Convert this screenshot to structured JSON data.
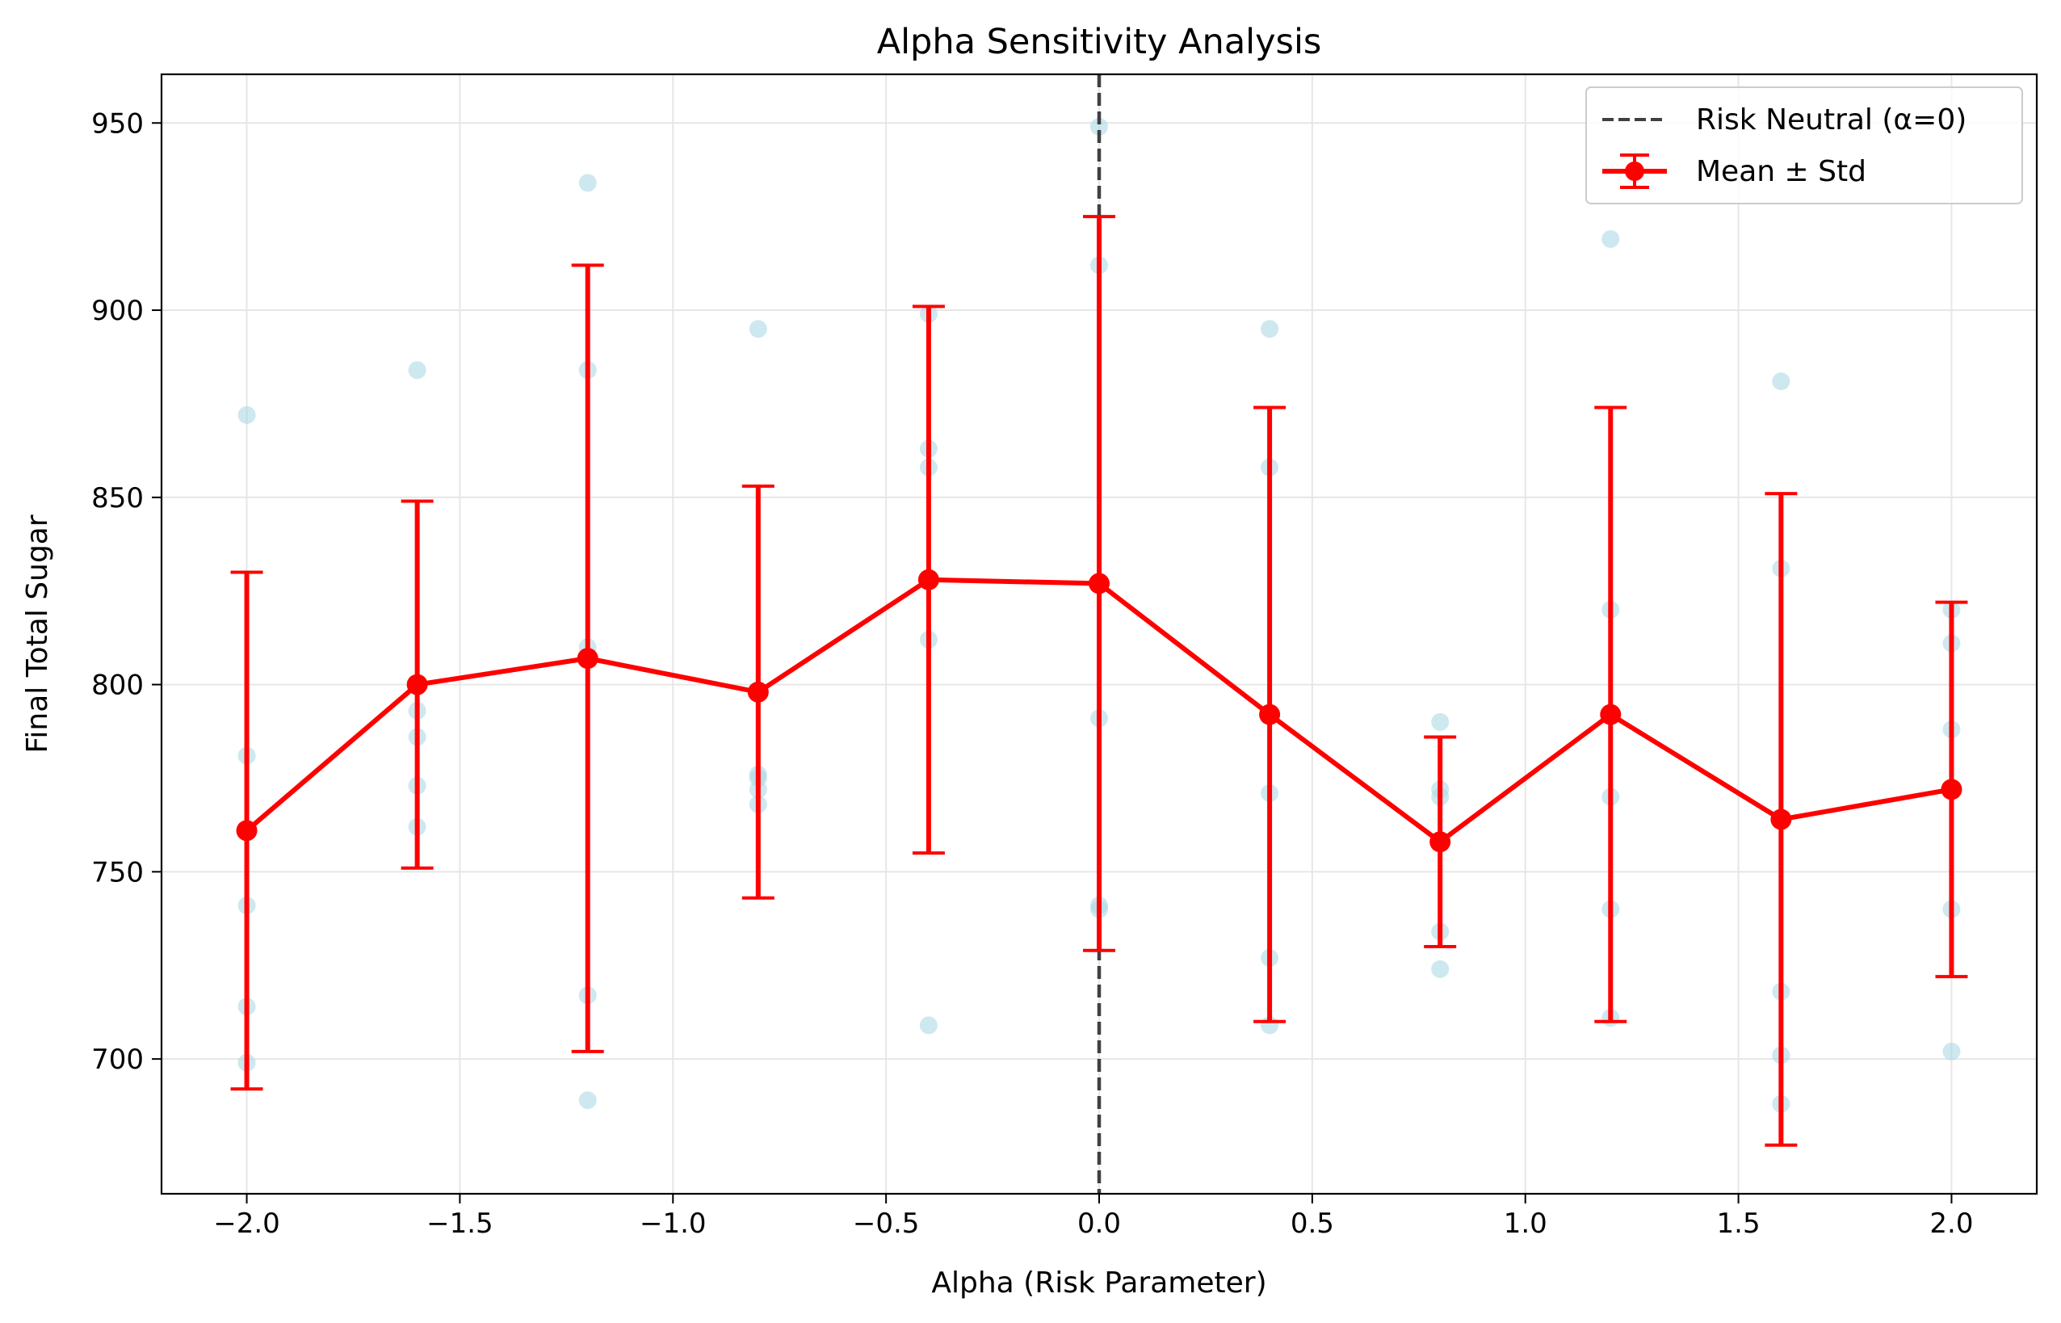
{
  "chart_data": {
    "type": "line",
    "title": "Alpha Sensitivity Analysis",
    "xlabel": "Alpha (Risk Parameter)",
    "ylabel": "Final Total Sugar",
    "xlim": [
      -2.2,
      2.2
    ],
    "ylim": [
      664,
      963
    ],
    "xticks": [
      -2.0,
      -1.5,
      -1.0,
      -0.5,
      0.0,
      0.5,
      1.0,
      1.5,
      2.0
    ],
    "xtick_labels": [
      "−2.0",
      "−1.5",
      "−1.0",
      "−0.5",
      "0.0",
      "0.5",
      "1.0",
      "1.5",
      "2.0"
    ],
    "yticks": [
      700,
      750,
      800,
      850,
      900,
      950
    ],
    "ytick_labels": [
      "700",
      "750",
      "800",
      "850",
      "900",
      "950"
    ],
    "grid": true,
    "legend": {
      "placement": "top-right",
      "entries": [
        "Risk Neutral (α=0)",
        "Mean ± Std"
      ]
    },
    "colors": {
      "mean_line": "#ff0000",
      "scatter": "#add8e6",
      "reference_line": "#404040",
      "grid": "#e6e6e6"
    },
    "reference_line": {
      "x": 0.0,
      "name": "Risk Neutral (α=0)",
      "style": "dashed"
    },
    "series": [
      {
        "name": "Mean ± Std",
        "type": "errorbar",
        "x": [
          -2.0,
          -1.6,
          -1.2,
          -0.8,
          -0.4,
          0.0,
          0.4,
          0.8,
          1.2,
          1.6,
          2.0
        ],
        "y": [
          761,
          800,
          807,
          798,
          828,
          827,
          792,
          758,
          792,
          764,
          772
        ],
        "std": [
          69,
          49,
          105,
          55,
          73,
          98,
          82,
          28,
          82,
          87,
          50
        ]
      },
      {
        "type": "scatter",
        "points": [
          [
            -2.0,
            872
          ],
          [
            -2.0,
            781
          ],
          [
            -2.0,
            741
          ],
          [
            -2.0,
            714
          ],
          [
            -2.0,
            699
          ],
          [
            -1.6,
            884
          ],
          [
            -1.6,
            793
          ],
          [
            -1.6,
            786
          ],
          [
            -1.6,
            773
          ],
          [
            -1.6,
            762
          ],
          [
            -1.2,
            934
          ],
          [
            -1.2,
            884
          ],
          [
            -1.2,
            810
          ],
          [
            -1.2,
            717
          ],
          [
            -1.2,
            689
          ],
          [
            -0.8,
            895
          ],
          [
            -0.8,
            776
          ],
          [
            -0.8,
            772
          ],
          [
            -0.8,
            768
          ],
          [
            -0.8,
            775
          ],
          [
            -0.4,
            899
          ],
          [
            -0.4,
            863
          ],
          [
            -0.4,
            858
          ],
          [
            -0.4,
            812
          ],
          [
            -0.4,
            709
          ],
          [
            0.0,
            949
          ],
          [
            0.0,
            912
          ],
          [
            0.0,
            791
          ],
          [
            0.0,
            741
          ],
          [
            0.0,
            740
          ],
          [
            0.4,
            895
          ],
          [
            0.4,
            858
          ],
          [
            0.4,
            771
          ],
          [
            0.4,
            727
          ],
          [
            0.4,
            709
          ],
          [
            0.8,
            790
          ],
          [
            0.8,
            772
          ],
          [
            0.8,
            770
          ],
          [
            0.8,
            734
          ],
          [
            0.8,
            724
          ],
          [
            1.2,
            919
          ],
          [
            1.2,
            820
          ],
          [
            1.2,
            770
          ],
          [
            1.2,
            740
          ],
          [
            1.2,
            711
          ],
          [
            1.6,
            881
          ],
          [
            1.6,
            831
          ],
          [
            1.6,
            718
          ],
          [
            1.6,
            701
          ],
          [
            1.6,
            688
          ],
          [
            2.0,
            820
          ],
          [
            2.0,
            811
          ],
          [
            2.0,
            788
          ],
          [
            2.0,
            740
          ],
          [
            2.0,
            702
          ]
        ]
      }
    ]
  }
}
